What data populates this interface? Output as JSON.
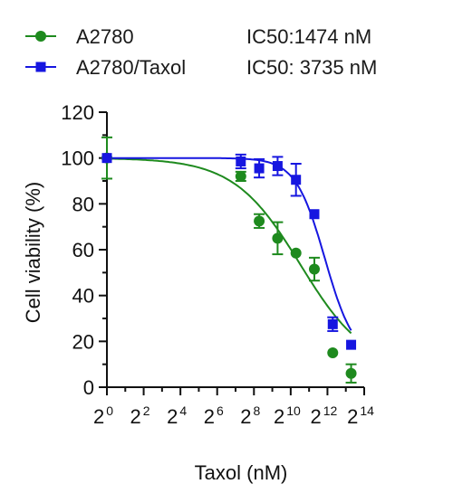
{
  "chart_data": {
    "type": "scatter",
    "xlabel": "Taxol (nM)",
    "ylabel": "Cell viability (%)",
    "xscale": "log2",
    "xlim": [
      1,
      16384
    ],
    "ylim": [
      0,
      120
    ],
    "x_ticks": [
      {
        "base": "2",
        "exp": "0",
        "value": 1
      },
      {
        "base": "2",
        "exp": "2",
        "value": 4
      },
      {
        "base": "2",
        "exp": "4",
        "value": 16
      },
      {
        "base": "2",
        "exp": "6",
        "value": 64
      },
      {
        "base": "2",
        "exp": "8",
        "value": 256
      },
      {
        "base": "2",
        "exp": "10",
        "value": 1024
      },
      {
        "base": "2",
        "exp": "12",
        "value": 4096
      },
      {
        "base": "2",
        "exp": "14",
        "value": 16384
      }
    ],
    "y_ticks": [
      "0",
      "20",
      "40",
      "60",
      "80",
      "100",
      "120"
    ],
    "grid": false,
    "legend_position": "top-left",
    "series": [
      {
        "name": "A2780",
        "ic50_label": "IC50:1474 nM",
        "ic50": 1474,
        "color": "#1e8a1e",
        "marker": "circle",
        "points": [
          {
            "x": 1,
            "y": 100,
            "err": 9
          },
          {
            "x": 156,
            "y": 92,
            "err": 2
          },
          {
            "x": 312,
            "y": 72.5,
            "err": 3
          },
          {
            "x": 625,
            "y": 65,
            "err": 7
          },
          {
            "x": 1250,
            "y": 58.5,
            "err": 0
          },
          {
            "x": 2500,
            "y": 51.5,
            "err": 5
          },
          {
            "x": 5000,
            "y": 15,
            "err": 0
          },
          {
            "x": 10000,
            "y": 6,
            "err": 4
          }
        ],
        "curve": {
          "top": 100,
          "bottom": 7,
          "hill": 0.8
        }
      },
      {
        "name": "A2780/Taxol",
        "ic50_label": "IC50: 3735 nM",
        "ic50": 3735,
        "color": "#1616e0",
        "marker": "square",
        "points": [
          {
            "x": 1,
            "y": 100,
            "err": 0
          },
          {
            "x": 156,
            "y": 98.5,
            "err": 3
          },
          {
            "x": 312,
            "y": 95.5,
            "err": 4
          },
          {
            "x": 625,
            "y": 96.5,
            "err": 4
          },
          {
            "x": 1250,
            "y": 90.5,
            "err": 7
          },
          {
            "x": 2500,
            "y": 75.5,
            "err": 0
          },
          {
            "x": 5000,
            "y": 27.5,
            "err": 3
          },
          {
            "x": 10000,
            "y": 18.5,
            "err": 0
          }
        ],
        "curve": {
          "top": 100,
          "bottom": 12,
          "hill": 1.8
        }
      }
    ]
  }
}
